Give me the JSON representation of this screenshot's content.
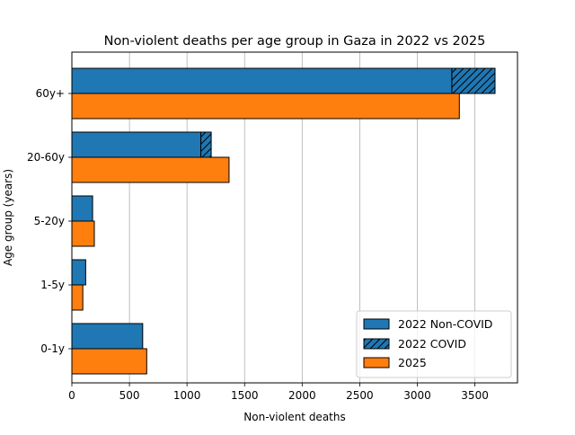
{
  "chart_data": {
    "type": "bar",
    "orientation": "horizontal",
    "title": "Non-violent deaths per age group in Gaza in 2022 vs 2025",
    "xlabel": "Non-violent deaths",
    "ylabel": "Age group (years)",
    "categories": [
      "0-1y",
      "1-5y",
      "5-20y",
      "20-60y",
      "60y+"
    ],
    "xlim": [
      0,
      3870
    ],
    "xticks": [
      0,
      500,
      1000,
      1500,
      2000,
      2500,
      3000,
      3500
    ],
    "grid": "x",
    "legend_position": "lower right",
    "series": [
      {
        "name": "2022 Non-COVID",
        "values": [
          615,
          120,
          180,
          1120,
          3300
        ],
        "color": "#1f77b4",
        "group": "2022"
      },
      {
        "name": "2022 COVID",
        "values": [
          0,
          0,
          0,
          90,
          375
        ],
        "color": "#1f77b4",
        "hatch": true,
        "group": "2022",
        "stacked_on": "2022 Non-COVID"
      },
      {
        "name": "2025",
        "values": [
          650,
          95,
          195,
          1365,
          3365
        ],
        "color": "#ff7f0e",
        "group": "2025"
      }
    ]
  }
}
